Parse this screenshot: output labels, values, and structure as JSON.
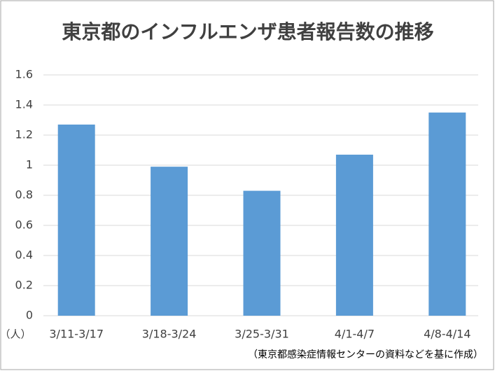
{
  "chart_data": {
    "type": "bar",
    "title": "東京都のインフルエンザ患者報告数の推移",
    "y_unit": "（人）",
    "source": "（東京都感染症情報センターの資料などを基に作成）",
    "categories": [
      "3/11-3/17",
      "3/18-3/24",
      "3/25-3/31",
      "4/1-4/7",
      "4/8-4/14"
    ],
    "values": [
      1.27,
      0.99,
      0.83,
      1.07,
      1.35
    ],
    "color": "#5b9bd5",
    "ylim": [
      0,
      1.6
    ],
    "yticks": [
      0,
      0.2,
      0.4,
      0.6,
      0.8,
      1,
      1.2,
      1.4,
      1.6
    ],
    "grid": true
  }
}
